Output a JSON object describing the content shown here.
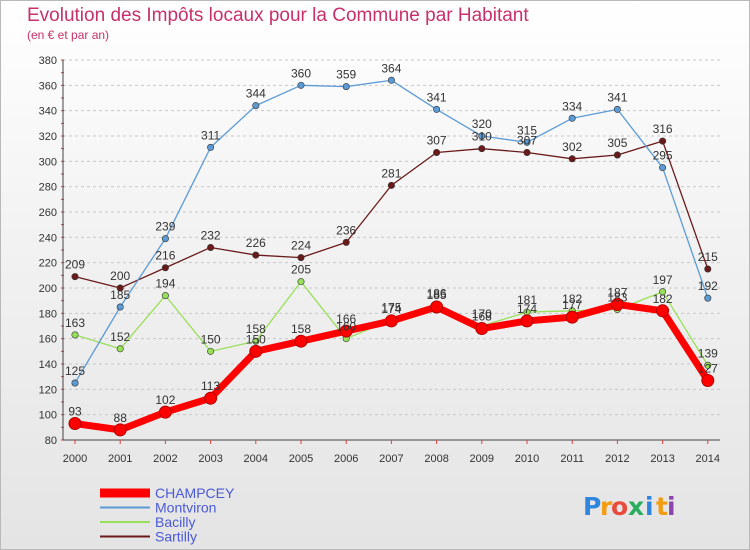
{
  "chart_data": {
    "type": "line",
    "title": "Evolution des Impôts locaux pour la Commune par Habitant",
    "subtitle": "(en € et par an)",
    "categories": [
      "2000",
      "2001",
      "2002",
      "2003",
      "2004",
      "2005",
      "2006",
      "2007",
      "2008",
      "2009",
      "2010",
      "2011",
      "2012",
      "2013",
      "2014"
    ],
    "ylim": [
      80,
      380
    ],
    "yticks": [
      80,
      100,
      120,
      140,
      160,
      180,
      200,
      220,
      240,
      260,
      280,
      300,
      320,
      340,
      360,
      380
    ],
    "grid": "horizontal dashed",
    "legend_position": "bottom-left",
    "series": [
      {
        "name": "CHAMPCEY",
        "color": "#ff0000",
        "values": [
          93,
          88,
          102,
          113,
          150,
          158,
          166,
          174,
          185,
          168,
          174,
          177,
          187,
          182,
          127
        ]
      },
      {
        "name": "Montviron",
        "color": "#5b9bd5",
        "values": [
          125,
          185,
          239,
          311,
          344,
          360,
          359,
          364,
          341,
          320,
          315,
          334,
          341,
          295,
          192
        ]
      },
      {
        "name": "Bacilly",
        "color": "#99e05a",
        "values": [
          163,
          152,
          194,
          150,
          158,
          205,
          160,
          175,
          186,
          170,
          181,
          182,
          183,
          197,
          139
        ]
      },
      {
        "name": "Sartilly",
        "color": "#6b1a1a",
        "values": [
          209,
          200,
          216,
          232,
          226,
          224,
          236,
          281,
          307,
          310,
          307,
          302,
          305,
          316,
          215
        ]
      }
    ]
  },
  "logo": {
    "letters": [
      "P",
      "r",
      "o",
      "x",
      "i",
      "t",
      "i"
    ],
    "colors": [
      "#2e86de",
      "#f39c12",
      "#e74c3c",
      "#27ae60",
      "#2e86de",
      "#f39c12",
      "#8e44ad"
    ]
  }
}
